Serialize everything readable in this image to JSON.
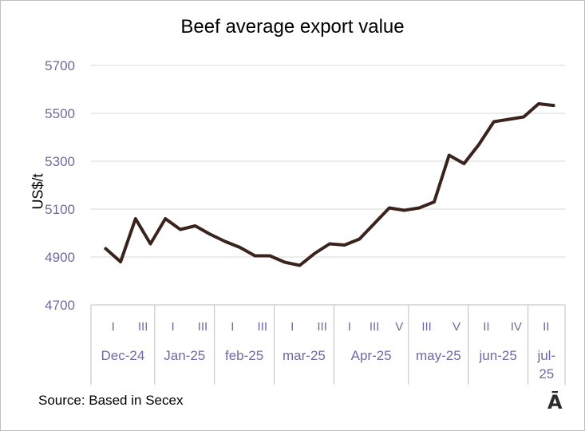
{
  "source": "Source: Based in Secex",
  "logo": "Ā",
  "chart_data": {
    "type": "line",
    "title": "Beef average export value",
    "xlabel": "",
    "ylabel": "US$/t",
    "ylim": [
      4700,
      5700
    ],
    "yticks": [
      4700,
      4900,
      5100,
      5300,
      5500,
      5700
    ],
    "grid": true,
    "line_color": "#3a231c",
    "axis_text_color": "#6e6aa0",
    "groups": [
      {
        "label": "Dec-24",
        "ticks": [
          "I",
          "III"
        ],
        "points": [
          4935,
          4880,
          5060,
          4955
        ]
      },
      {
        "label": "Jan-25",
        "ticks": [
          "I",
          "III"
        ],
        "points": [
          5060,
          5015,
          5030,
          4995
        ]
      },
      {
        "label": "feb-25",
        "ticks": [
          "I",
          "III"
        ],
        "points": [
          4965,
          4940,
          4905,
          4905
        ]
      },
      {
        "label": "mar-25",
        "ticks": [
          "I",
          "III"
        ],
        "points": [
          4878,
          4865,
          4915,
          4955
        ]
      },
      {
        "label": "Apr-25",
        "ticks": [
          "I",
          "III",
          "V"
        ],
        "points": [
          4950,
          4975,
          5040,
          5105,
          5095
        ]
      },
      {
        "label": "may-25",
        "ticks": [
          "III",
          "V"
        ],
        "points": [
          5105,
          5130,
          5325,
          5290
        ]
      },
      {
        "label": "jun-25",
        "ticks": [
          "II",
          "IV"
        ],
        "points": [
          5370,
          5465,
          5475,
          5485
        ]
      },
      {
        "label": "jul-25",
        "ticks": [
          "II"
        ],
        "points": [
          5540,
          5533
        ]
      }
    ]
  }
}
